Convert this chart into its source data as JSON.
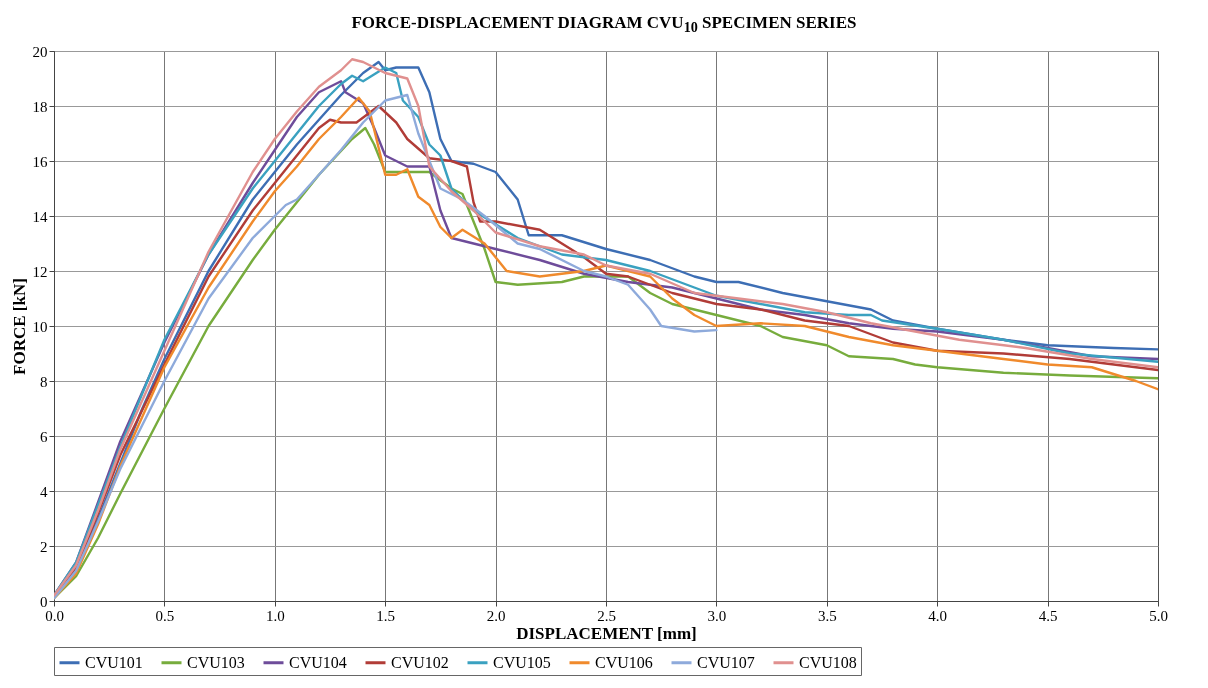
{
  "chart_data": {
    "type": "line",
    "title": "FORCE-DISPLACEMENT DIAGRAM CVU$_{10}$ SPECIMEN SERIES",
    "xlabel": "DISPLACEMENT [mm]",
    "ylabel": "FORCE  [kN]",
    "xlim": [
      0,
      5
    ],
    "xticks": [
      {
        "value": 0,
        "label": "0.0"
      },
      {
        "value": 0.5,
        "label": "0.5"
      },
      {
        "value": 1,
        "label": "1.0"
      },
      {
        "value": 1.5,
        "label": "1.5"
      },
      {
        "value": 2,
        "label": "2.0"
      },
      {
        "value": 2.5,
        "label": "2.5"
      },
      {
        "value": 3,
        "label": "3.0"
      },
      {
        "value": 3.5,
        "label": "3.5"
      },
      {
        "value": 4,
        "label": "4.0"
      },
      {
        "value": 4.5,
        "label": "4.5"
      },
      {
        "value": 5,
        "label": "5.0"
      }
    ],
    "ylim": [
      0,
      20
    ],
    "yticks": [
      0,
      2,
      4,
      6,
      8,
      10,
      12,
      14,
      16,
      18,
      20
    ],
    "grid": true,
    "legend": "bottom",
    "marker": "none",
    "line_style": "solid",
    "series": [
      {
        "name": "CVU101",
        "color": "#3d6eb4",
        "x": [
          0,
          0.1,
          0.2,
          0.3,
          0.4,
          0.5,
          0.7,
          0.9,
          1.1,
          1.3,
          1.4,
          1.47,
          1.5,
          1.55,
          1.65,
          1.7,
          1.75,
          1.8,
          1.9,
          2.0,
          2.1,
          2.15,
          2.3,
          2.5,
          2.7,
          2.9,
          3.0,
          3.1,
          3.3,
          3.5,
          3.7,
          3.8,
          4.0,
          4.3,
          4.5,
          4.8,
          5.0
        ],
        "values": [
          0.2,
          1.2,
          3,
          5,
          7,
          8.8,
          12,
          14.6,
          16.6,
          18.4,
          19.2,
          19.6,
          19.3,
          19.4,
          19.4,
          18.5,
          16.8,
          16.0,
          15.9,
          15.6,
          14.6,
          13.3,
          13.3,
          12.8,
          12.4,
          11.8,
          11.6,
          11.6,
          11.2,
          10.9,
          10.6,
          10.2,
          9.9,
          9.5,
          9.3,
          9.2,
          9.15
        ]
      },
      {
        "name": "CVU103",
        "color": "#77ac3d",
        "x": [
          0,
          0.1,
          0.2,
          0.3,
          0.5,
          0.7,
          0.9,
          1.0,
          1.2,
          1.35,
          1.41,
          1.45,
          1.5,
          1.55,
          1.7,
          1.8,
          1.85,
          1.95,
          2.0,
          2.1,
          2.3,
          2.4,
          2.6,
          2.7,
          2.8,
          3.0,
          3.2,
          3.3,
          3.5,
          3.6,
          3.8,
          3.9,
          4.0,
          4.3,
          4.6,
          5.0
        ],
        "values": [
          0.1,
          0.9,
          2.3,
          3.9,
          7,
          10,
          12.4,
          13.5,
          15.5,
          16.8,
          17.2,
          16.6,
          15.6,
          15.6,
          15.6,
          15,
          14.8,
          12.8,
          11.6,
          11.5,
          11.6,
          11.8,
          11.8,
          11.2,
          10.8,
          10.4,
          10.0,
          9.6,
          9.3,
          8.9,
          8.8,
          8.6,
          8.5,
          8.3,
          8.2,
          8.1
        ]
      },
      {
        "name": "CVU104",
        "color": "#6e4c9a",
        "x": [
          0,
          0.1,
          0.2,
          0.3,
          0.5,
          0.7,
          0.9,
          1.0,
          1.1,
          1.2,
          1.3,
          1.32,
          1.4,
          1.45,
          1.5,
          1.6,
          1.7,
          1.75,
          1.8,
          1.9,
          2.0,
          2.2,
          2.4,
          2.6,
          2.8,
          3.0,
          3.2,
          3.4,
          3.6,
          3.8,
          4.0,
          4.3,
          4.5,
          4.7,
          5.0
        ],
        "values": [
          0.2,
          1.4,
          3.6,
          5.8,
          9.4,
          12.6,
          15.2,
          16.4,
          17.6,
          18.5,
          18.9,
          18.5,
          18.1,
          17.2,
          16.2,
          15.8,
          15.8,
          14.2,
          13.2,
          13.0,
          12.8,
          12.4,
          11.9,
          11.6,
          11.4,
          11.0,
          10.6,
          10.4,
          10.1,
          9.9,
          9.8,
          9.5,
          9.2,
          8.9,
          8.8
        ]
      },
      {
        "name": "CVU102",
        "color": "#b13c37",
        "x": [
          0,
          0.1,
          0.2,
          0.3,
          0.5,
          0.7,
          0.9,
          1.0,
          1.1,
          1.2,
          1.25,
          1.3,
          1.37,
          1.47,
          1.55,
          1.6,
          1.7,
          1.8,
          1.87,
          1.9,
          1.93,
          2.0,
          2.2,
          2.4,
          2.5,
          2.6,
          2.8,
          3.0,
          3.2,
          3.4,
          3.6,
          3.8,
          4.0,
          4.3,
          4.6,
          5.0
        ],
        "values": [
          0.2,
          1.2,
          3.2,
          5.3,
          8.6,
          11.8,
          14.2,
          15.2,
          16.2,
          17.2,
          17.5,
          17.4,
          17.4,
          18.0,
          17.4,
          16.8,
          16.1,
          16.0,
          15.8,
          14.5,
          13.8,
          13.8,
          13.5,
          12.5,
          11.9,
          11.8,
          11.2,
          10.8,
          10.6,
          10.2,
          10.0,
          9.4,
          9.1,
          9.0,
          8.8,
          8.4
        ]
      },
      {
        "name": "CVU105",
        "color": "#3aa1c0",
        "x": [
          0,
          0.1,
          0.2,
          0.3,
          0.5,
          0.7,
          0.9,
          1.0,
          1.1,
          1.2,
          1.3,
          1.35,
          1.4,
          1.5,
          1.55,
          1.58,
          1.65,
          1.7,
          1.75,
          1.8,
          1.9,
          2.0,
          2.1,
          2.2,
          2.3,
          2.5,
          2.7,
          2.9,
          3.0,
          3.2,
          3.4,
          3.6,
          3.7,
          3.75,
          4.0,
          4.3,
          4.6,
          5.0
        ],
        "values": [
          0.2,
          1.4,
          3.5,
          5.6,
          9.5,
          12.6,
          15.0,
          16.0,
          17.0,
          18.0,
          18.8,
          19.1,
          18.9,
          19.4,
          19.2,
          18.2,
          17.6,
          16.6,
          16.2,
          15.0,
          14.2,
          13.7,
          13.2,
          12.9,
          12.6,
          12.4,
          12.0,
          11.4,
          11.1,
          10.8,
          10.5,
          10.4,
          10.4,
          10.2,
          9.9,
          9.5,
          9.0,
          8.7
        ]
      },
      {
        "name": "CVU106",
        "color": "#f08a2c",
        "x": [
          0,
          0.1,
          0.2,
          0.3,
          0.5,
          0.7,
          0.9,
          1.0,
          1.1,
          1.2,
          1.3,
          1.38,
          1.43,
          1.5,
          1.55,
          1.6,
          1.65,
          1.7,
          1.75,
          1.8,
          1.85,
          1.95,
          2.05,
          2.2,
          2.4,
          2.5,
          2.7,
          2.8,
          2.9,
          3.0,
          3.2,
          3.4,
          3.6,
          3.8,
          4.0,
          4.3,
          4.5,
          4.7,
          4.9,
          5.0
        ],
        "values": [
          0.1,
          1.0,
          2.8,
          4.9,
          8.5,
          11.4,
          13.8,
          14.9,
          15.8,
          16.8,
          17.6,
          18.3,
          17.8,
          15.5,
          15.5,
          15.7,
          14.7,
          14.4,
          13.6,
          13.2,
          13.5,
          13.0,
          12.0,
          11.8,
          12.0,
          12.2,
          11.8,
          11.0,
          10.4,
          10.0,
          10.1,
          10.0,
          9.6,
          9.3,
          9.1,
          8.8,
          8.6,
          8.5,
          8.0,
          7.7
        ]
      },
      {
        "name": "CVU107",
        "color": "#8eaadb",
        "x": [
          0,
          0.1,
          0.2,
          0.3,
          0.5,
          0.7,
          0.9,
          1.0,
          1.05,
          1.1,
          1.2,
          1.3,
          1.4,
          1.5,
          1.6,
          1.65,
          1.7,
          1.75,
          1.85,
          1.95,
          2.1,
          2.2,
          2.4,
          2.5,
          2.6,
          2.7,
          2.75,
          2.9,
          3.0
        ],
        "values": [
          0.1,
          1.1,
          2.9,
          4.8,
          8.0,
          11.0,
          13.2,
          14.0,
          14.4,
          14.6,
          15.5,
          16.4,
          17.4,
          18.2,
          18.4,
          17.0,
          16.0,
          15.0,
          14.6,
          14.0,
          13.0,
          12.8,
          12.0,
          11.8,
          11.5,
          10.6,
          10.0,
          9.8,
          9.85
        ]
      },
      {
        "name": "CVU108",
        "color": "#e0908f",
        "x": [
          0,
          0.1,
          0.2,
          0.3,
          0.5,
          0.7,
          0.9,
          1.0,
          1.1,
          1.2,
          1.3,
          1.35,
          1.4,
          1.5,
          1.6,
          1.65,
          1.7,
          1.8,
          1.9,
          2.0,
          2.2,
          2.4,
          2.5,
          2.7,
          2.9,
          3.1,
          3.3,
          3.5,
          3.7,
          3.9,
          4.1,
          4.4,
          4.7,
          5.0
        ],
        "values": [
          0.2,
          1.3,
          3.3,
          5.5,
          9.1,
          12.7,
          15.6,
          16.8,
          17.8,
          18.7,
          19.3,
          19.7,
          19.6,
          19.2,
          19.0,
          18.0,
          15.8,
          14.9,
          14.2,
          13.4,
          12.9,
          12.6,
          12.2,
          11.9,
          11.2,
          11.0,
          10.8,
          10.5,
          10.1,
          9.8,
          9.5,
          9.2,
          8.8,
          8.5
        ]
      }
    ]
  }
}
